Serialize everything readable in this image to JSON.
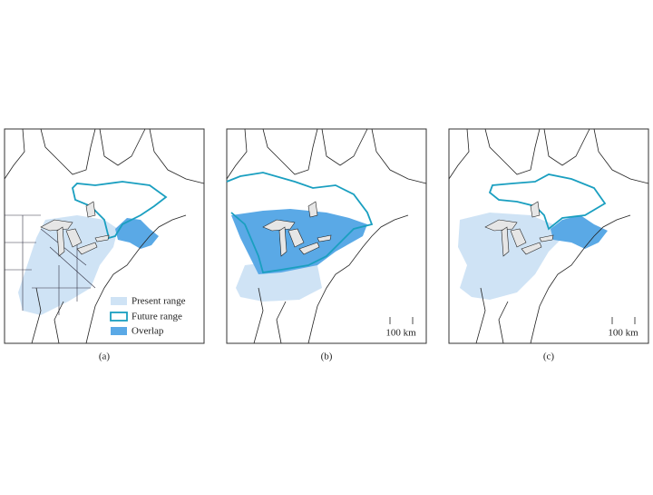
{
  "panels": [
    {
      "label": "(a)",
      "legend": [
        "Present range",
        "Future range",
        "Overlap"
      ]
    },
    {
      "label": "(b)",
      "scale": "100 km"
    },
    {
      "label": "(c)",
      "scale": "100 km"
    }
  ]
}
